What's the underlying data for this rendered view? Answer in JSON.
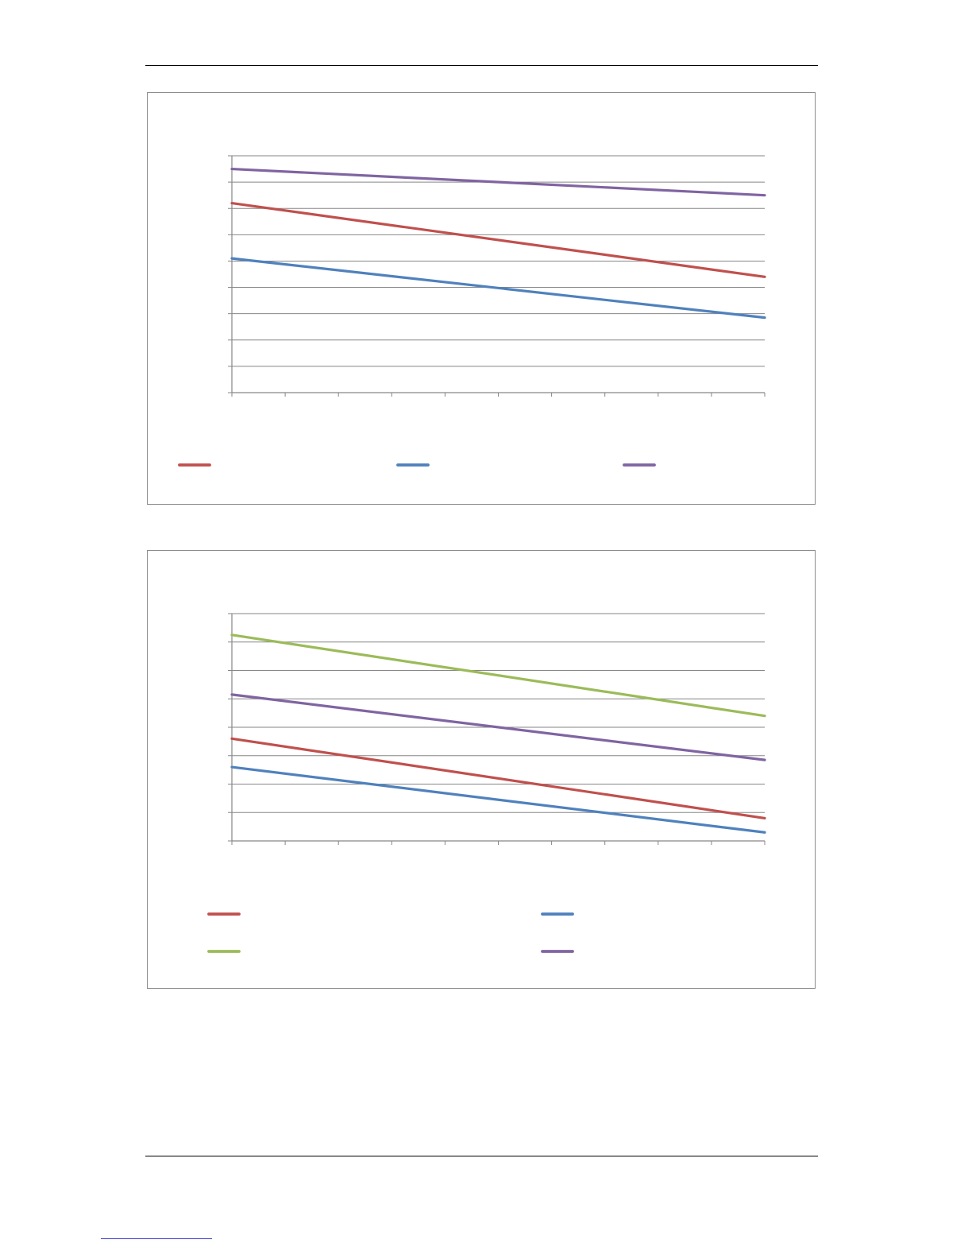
{
  "page": {
    "rule_color": "#000000",
    "link_color": "#3a3ad0"
  },
  "chart_data": [
    {
      "type": "line",
      "title": "",
      "xlabel": "",
      "ylabel": "",
      "x": [
        0,
        10
      ],
      "xlim": [
        0,
        10
      ],
      "ylim": [
        0,
        9
      ],
      "x_ticks": 10,
      "y_ticks": 9,
      "grid": true,
      "legend_position": "bottom",
      "series": [
        {
          "color": "#c0504d",
          "values": [
            7.2,
            4.4
          ]
        },
        {
          "color": "#4f81bd",
          "values": [
            5.1,
            2.85
          ]
        },
        {
          "color": "#8064a2",
          "values": [
            8.5,
            7.5
          ]
        }
      ]
    },
    {
      "type": "line",
      "title": "",
      "xlabel": "",
      "ylabel": "",
      "x": [
        0,
        10
      ],
      "xlim": [
        0,
        10
      ],
      "ylim": [
        0,
        8
      ],
      "x_ticks": 10,
      "y_ticks": 8,
      "grid": true,
      "legend_position": "bottom",
      "series": [
        {
          "color": "#c0504d",
          "values": [
            3.6,
            0.8
          ]
        },
        {
          "color": "#4f81bd",
          "values": [
            2.6,
            0.3
          ]
        },
        {
          "color": "#9bbb59",
          "values": [
            7.25,
            4.4
          ]
        },
        {
          "color": "#8064a2",
          "values": [
            5.15,
            2.85
          ]
        }
      ]
    }
  ]
}
